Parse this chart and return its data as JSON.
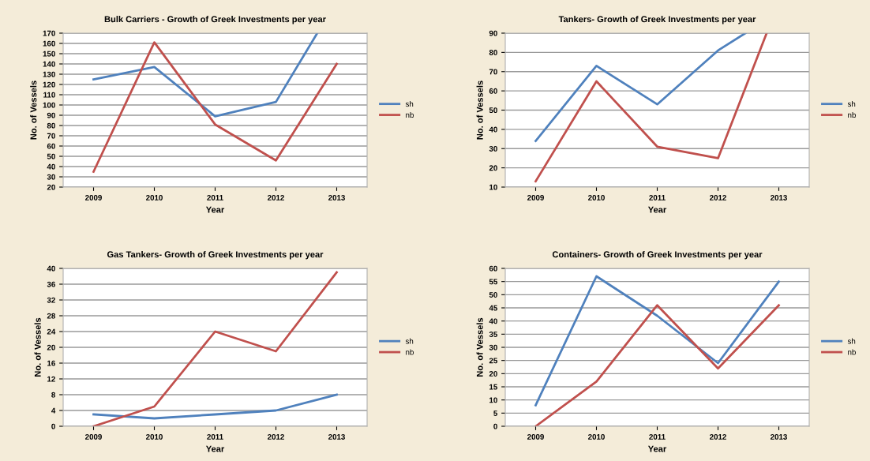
{
  "chart_data": [
    {
      "type": "line",
      "title": "Bulk Carriers - Growth of Greek Investments per year",
      "xlabel": "Year",
      "ylabel": "No. of Vessels",
      "x": [
        2009,
        2010,
        2011,
        2012,
        2013
      ],
      "xlim": [
        2008.5,
        2013.5
      ],
      "xticks": [
        2009,
        2010,
        2011,
        2012,
        2013
      ],
      "ylim": [
        20,
        170
      ],
      "yticks": [
        20,
        30,
        40,
        50,
        60,
        70,
        80,
        90,
        100,
        110,
        120,
        130,
        140,
        150,
        160,
        170
      ],
      "grid": "y",
      "legend": "right",
      "marker": "none",
      "series": [
        {
          "name": "sh",
          "color": "#4f81bd",
          "x": [
            2009,
            2010,
            2011,
            2012,
            2012.68
          ],
          "values": [
            125,
            137,
            89,
            103,
            170
          ]
        },
        {
          "name": "nb",
          "color": "#c0504d",
          "values": [
            35,
            161,
            81,
            46,
            140
          ]
        }
      ]
    },
    {
      "type": "line",
      "title": "Tankers- Growth of Greek Investments per year",
      "xlabel": "Year",
      "ylabel": "No. of Vessels",
      "xlim": [
        2008.5,
        2013.5
      ],
      "xticks": [
        2009,
        2010,
        2011,
        2012,
        2013
      ],
      "ylim": [
        10,
        90
      ],
      "yticks": [
        10,
        20,
        30,
        40,
        50,
        60,
        70,
        80,
        90
      ],
      "grid": "y",
      "legend": "right",
      "marker": "none",
      "series": [
        {
          "name": "sh",
          "color": "#4f81bd",
          "x": [
            2009,
            2010,
            2011,
            2012,
            2012.45
          ],
          "values": [
            34,
            73,
            53,
            81,
            90
          ]
        },
        {
          "name": "nb",
          "color": "#c0504d",
          "x": [
            2009,
            2010,
            2011,
            2012,
            2012.8
          ],
          "values": [
            13,
            65,
            31,
            25,
            90
          ]
        }
      ]
    },
    {
      "type": "line",
      "title": "Gas Tankers- Growth of Greek Investments per year",
      "xlabel": "Year",
      "ylabel": "No. of Vessels",
      "x": [
        2009,
        2010,
        2011,
        2012,
        2013
      ],
      "xlim": [
        2008.5,
        2013.5
      ],
      "xticks": [
        2009,
        2010,
        2011,
        2012,
        2013
      ],
      "ylim": [
        0,
        40
      ],
      "yticks": [
        0,
        4,
        8,
        12,
        16,
        20,
        24,
        28,
        32,
        36,
        40
      ],
      "grid": "y",
      "legend": "right",
      "marker": "none",
      "series": [
        {
          "name": "sh",
          "color": "#4f81bd",
          "values": [
            3,
            2,
            3,
            4,
            8
          ]
        },
        {
          "name": "nb",
          "color": "#c0504d",
          "values": [
            0,
            5,
            24,
            19,
            39
          ]
        }
      ]
    },
    {
      "type": "line",
      "title": "Containers- Growth of Greek Investments per year",
      "xlabel": "Year",
      "ylabel": "No. of Vessels",
      "x": [
        2009,
        2010,
        2011,
        2012,
        2013
      ],
      "xlim": [
        2008.5,
        2013.5
      ],
      "xticks": [
        2009,
        2010,
        2011,
        2012,
        2013
      ],
      "ylim": [
        0,
        60
      ],
      "yticks": [
        0,
        5,
        10,
        15,
        20,
        25,
        30,
        35,
        40,
        45,
        50,
        55,
        60
      ],
      "grid": "y",
      "legend": "right",
      "marker": "none",
      "series": [
        {
          "name": "sh",
          "color": "#4f81bd",
          "values": [
            8,
            57,
            42,
            24,
            55
          ]
        },
        {
          "name": "nb",
          "color": "#c0504d",
          "values": [
            0,
            17,
            46,
            22,
            46
          ]
        }
      ]
    }
  ]
}
